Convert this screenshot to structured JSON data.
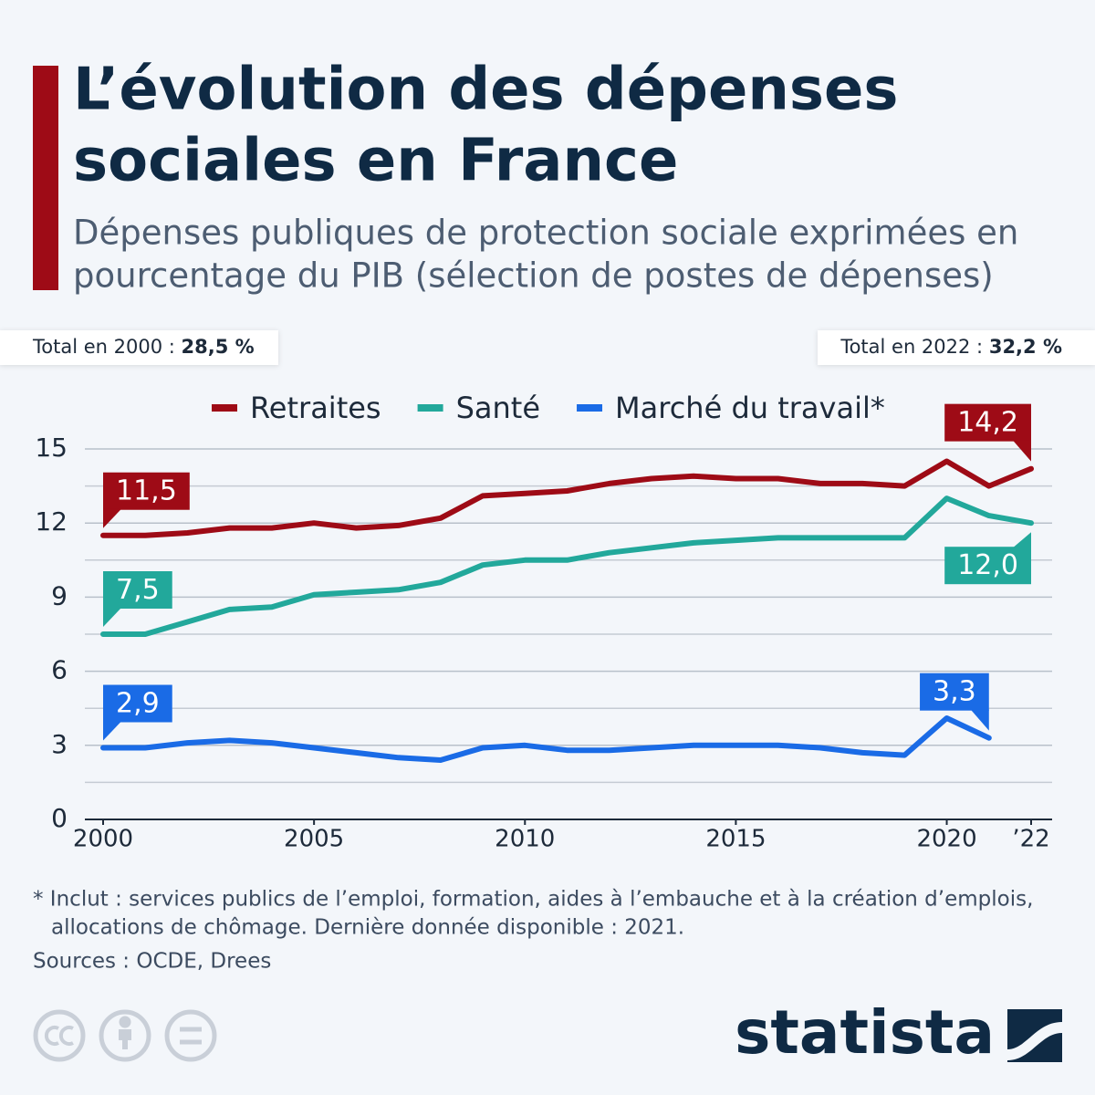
{
  "chart_data": {
    "type": "line",
    "title": [
      "L’évolution des dépenses",
      "sociales en France"
    ],
    "subtitle": [
      "Dépenses publiques de protection sociale exprimées en",
      "pourcentage du PIB (sélection de postes de dépenses)"
    ],
    "totals": [
      {
        "label": "Total en 2000 :",
        "value": "28,5 %"
      },
      {
        "label": "Total en 2022 :",
        "value": "32,2 %"
      }
    ],
    "x": [
      2000,
      2001,
      2002,
      2003,
      2004,
      2005,
      2006,
      2007,
      2008,
      2009,
      2010,
      2011,
      2012,
      2013,
      2014,
      2015,
      2016,
      2017,
      2018,
      2019,
      2020,
      2021,
      2022
    ],
    "xlim": [
      2000,
      2022
    ],
    "xticks": [
      2000,
      2005,
      2010,
      2015,
      2020,
      {
        "value": 2022,
        "label": "’22"
      }
    ],
    "ylim": [
      0,
      15
    ],
    "yticks": [
      0,
      3,
      6,
      9,
      12,
      15
    ],
    "minor_yticks": [
      1.5,
      4.5,
      7.5,
      10.5,
      13.5
    ],
    "grid": true,
    "legend": "top",
    "series": [
      {
        "name": "Retraites",
        "color": "#9e0b16",
        "values": [
          11.5,
          11.5,
          11.6,
          11.8,
          11.8,
          12.0,
          11.8,
          11.9,
          12.2,
          13.1,
          13.2,
          13.3,
          13.6,
          13.8,
          13.9,
          13.8,
          13.8,
          13.6,
          13.6,
          13.5,
          14.5,
          13.5,
          14.2
        ],
        "value_labels": [
          "11,5",
          null,
          null,
          null,
          null,
          null,
          null,
          null,
          null,
          null,
          null,
          null,
          null,
          null,
          null,
          null,
          null,
          null,
          null,
          null,
          null,
          null,
          "14,2"
        ]
      },
      {
        "name": "Santé",
        "color": "#22a89b",
        "values": [
          7.5,
          7.5,
          8.0,
          8.5,
          8.6,
          9.1,
          9.2,
          9.3,
          9.6,
          10.3,
          10.5,
          10.5,
          10.8,
          11.0,
          11.2,
          11.3,
          11.4,
          11.4,
          11.4,
          11.4,
          13.0,
          12.3,
          12.0
        ],
        "value_labels": [
          "7,5",
          null,
          null,
          null,
          null,
          null,
          null,
          null,
          null,
          null,
          null,
          null,
          null,
          null,
          null,
          null,
          null,
          null,
          null,
          null,
          null,
          null,
          "12,0"
        ]
      },
      {
        "name": "Marché du travail*",
        "color": "#1a6be6",
        "values": [
          2.9,
          2.9,
          3.1,
          3.2,
          3.1,
          2.9,
          2.7,
          2.5,
          2.4,
          2.9,
          3.0,
          2.8,
          2.8,
          2.9,
          3.0,
          3.0,
          3.0,
          2.9,
          2.7,
          2.6,
          4.1,
          3.3,
          null
        ],
        "value_labels": [
          "2,9",
          null,
          null,
          null,
          null,
          null,
          null,
          null,
          null,
          null,
          null,
          null,
          null,
          null,
          null,
          null,
          null,
          null,
          null,
          null,
          null,
          "3,3",
          null
        ]
      }
    ],
    "footnote": [
      "* Inclut : services publics de l’emploi, formation, aides à l’embauche et à la création d’emplois,",
      "allocations de chômage. Dernière donnée disponible : 2021."
    ],
    "source": "Sources : OCDE, Drees",
    "brand": "statista"
  }
}
